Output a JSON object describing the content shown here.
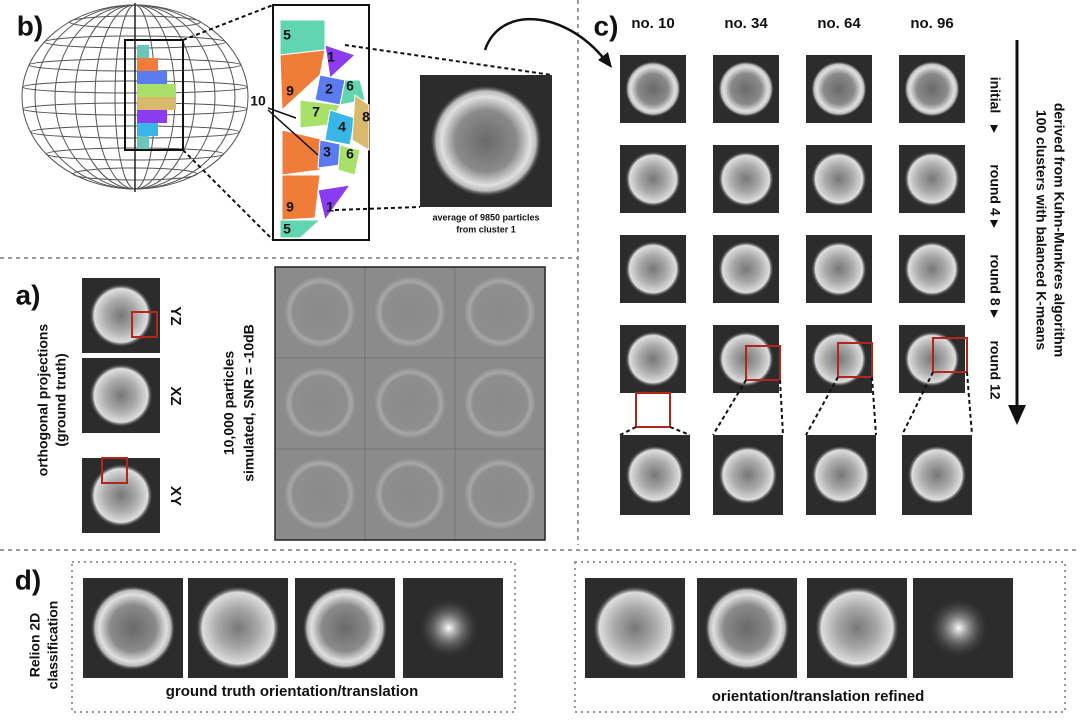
{
  "panel_b": {
    "label": "b)",
    "cell_numbers": [
      "5",
      "9",
      "1",
      "2",
      "6",
      "10",
      "7",
      "4",
      "8",
      "3",
      "6",
      "9",
      "1",
      "5"
    ],
    "average_caption": [
      "average of 9850 particles",
      "from cluster 1"
    ]
  },
  "panel_c": {
    "label": "c)",
    "columns": [
      "no. 10",
      "no. 34",
      "no. 64",
      "no. 96"
    ],
    "rows": [
      "initial",
      "round 4",
      "round 8",
      "round 12"
    ],
    "axis_label": [
      "100 clusters with balanced K-means",
      "derived from Kuhn-Munkres algorithm"
    ]
  },
  "panel_a": {
    "label": "a)",
    "projections_label": [
      "orthogonal projections",
      "(ground truth)"
    ],
    "projections": [
      "YZ",
      "XZ",
      "XY"
    ],
    "particles_label": [
      "10,000 particles",
      "simulated, SNR = -10dB"
    ]
  },
  "panel_d": {
    "label": "d)",
    "method": [
      "Relion 2D",
      "classification"
    ],
    "groups": [
      "ground truth orientation/translation",
      "orientation/translation refined"
    ]
  }
}
